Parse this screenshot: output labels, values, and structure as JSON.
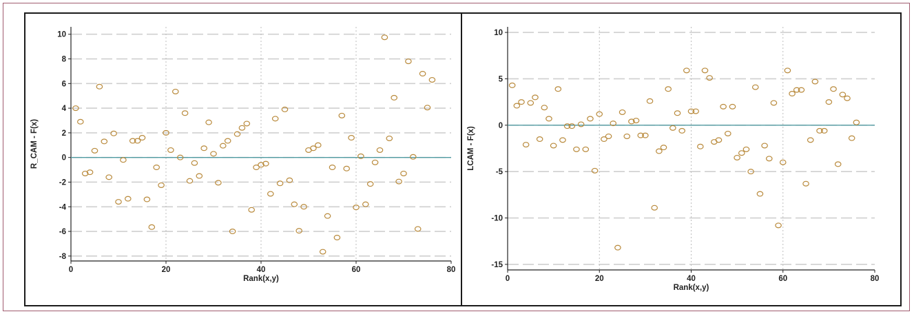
{
  "chart_data": [
    {
      "type": "scatter",
      "title": "",
      "xlabel": "Rank(x,y)",
      "ylabel": "R_CAM - F(x)",
      "xlim": [
        0,
        80
      ],
      "ylim": [
        -8.4,
        10.6
      ],
      "xticks": [
        0,
        20,
        40,
        60,
        80
      ],
      "yticks": [
        10,
        8,
        6,
        4,
        2,
        0,
        -2,
        -4,
        -6,
        -8
      ],
      "xtick_labels": [
        "0",
        "20",
        "40",
        "60",
        "80"
      ],
      "ytick_labels": [
        "10",
        "8",
        "6",
        "4",
        "2",
        "0",
        "-2",
        "-4",
        "-6",
        "-8"
      ],
      "grid": true,
      "reference_line": 0,
      "marker": "open-circle",
      "marker_color": "#b98a3c",
      "line_color": "#4f9aa0",
      "points": [
        [
          1,
          4.0
        ],
        [
          2,
          2.9
        ],
        [
          3,
          -1.3
        ],
        [
          4,
          -1.2
        ],
        [
          5,
          0.55
        ],
        [
          6,
          5.75
        ],
        [
          7,
          1.3
        ],
        [
          8,
          -1.6
        ],
        [
          9,
          1.95
        ],
        [
          10,
          -3.6
        ],
        [
          11,
          -0.2
        ],
        [
          12,
          -3.35
        ],
        [
          13,
          1.35
        ],
        [
          14,
          1.35
        ],
        [
          15,
          1.6
        ],
        [
          16,
          -3.4
        ],
        [
          17,
          -5.65
        ],
        [
          18,
          -0.8
        ],
        [
          19,
          -2.25
        ],
        [
          20,
          2.0
        ],
        [
          21,
          0.6
        ],
        [
          22,
          5.35
        ],
        [
          23,
          0.0
        ],
        [
          24,
          3.6
        ],
        [
          25,
          -1.9
        ],
        [
          26,
          -0.45
        ],
        [
          27,
          -1.5
        ],
        [
          28,
          0.75
        ],
        [
          29,
          2.85
        ],
        [
          30,
          0.3
        ],
        [
          31,
          -2.05
        ],
        [
          32,
          0.95
        ],
        [
          33,
          1.35
        ],
        [
          34,
          -6.0
        ],
        [
          35,
          1.9
        ],
        [
          36,
          2.4
        ],
        [
          37,
          2.75
        ],
        [
          38,
          -4.25
        ],
        [
          39,
          -0.8
        ],
        [
          40,
          -0.6
        ],
        [
          41,
          -0.5
        ],
        [
          42,
          -2.95
        ],
        [
          43,
          3.15
        ],
        [
          44,
          -2.1
        ],
        [
          45,
          3.9
        ],
        [
          46,
          -1.85
        ],
        [
          47,
          -3.8
        ],
        [
          48,
          -5.95
        ],
        [
          49,
          -4.0
        ],
        [
          50,
          0.6
        ],
        [
          51,
          0.75
        ],
        [
          52,
          1.0
        ],
        [
          53,
          -7.65
        ],
        [
          54,
          -4.75
        ],
        [
          55,
          -0.8
        ],
        [
          56,
          -6.5
        ],
        [
          57,
          3.4
        ],
        [
          58,
          -0.9
        ],
        [
          59,
          1.6
        ],
        [
          60,
          -4.05
        ],
        [
          61,
          0.1
        ],
        [
          62,
          -3.8
        ],
        [
          63,
          -2.15
        ],
        [
          64,
          -0.4
        ],
        [
          65,
          0.6
        ],
        [
          66,
          9.75
        ],
        [
          67,
          1.55
        ],
        [
          68,
          4.85
        ],
        [
          69,
          -1.95
        ],
        [
          70,
          -1.3
        ],
        [
          71,
          7.8
        ],
        [
          72,
          0.05
        ],
        [
          73,
          -5.8
        ],
        [
          74,
          6.8
        ],
        [
          75,
          4.05
        ],
        [
          76,
          6.3
        ]
      ]
    },
    {
      "type": "scatter",
      "title": "",
      "xlabel": "Rank(x,y)",
      "ylabel": "LCAM - F(x)",
      "xlim": [
        0,
        80
      ],
      "ylim": [
        -15.6,
        10.6
      ],
      "xticks": [
        0,
        20,
        40,
        60,
        80
      ],
      "yticks": [
        10,
        5,
        0,
        -5,
        -10,
        -15
      ],
      "xtick_labels": [
        "0",
        "20",
        "40",
        "60",
        "80"
      ],
      "ytick_labels": [
        "10",
        "5",
        "0",
        "-5",
        "-10",
        "-15"
      ],
      "grid": true,
      "reference_line": 0,
      "marker": "open-circle",
      "marker_color": "#b98a3c",
      "line_color": "#4f9aa0",
      "points": [
        [
          1,
          4.3
        ],
        [
          2,
          2.1
        ],
        [
          3,
          2.5
        ],
        [
          4,
          -2.1
        ],
        [
          5,
          2.4
        ],
        [
          6,
          3.0
        ],
        [
          7,
          -1.5
        ],
        [
          8,
          1.9
        ],
        [
          9,
          0.7
        ],
        [
          10,
          -2.2
        ],
        [
          11,
          3.9
        ],
        [
          12,
          -1.6
        ],
        [
          13,
          -0.1
        ],
        [
          14,
          -0.1
        ],
        [
          15,
          -2.6
        ],
        [
          16,
          0.1
        ],
        [
          17,
          -2.6
        ],
        [
          18,
          0.7
        ],
        [
          19,
          -4.9
        ],
        [
          20,
          1.2
        ],
        [
          21,
          -1.5
        ],
        [
          22,
          -1.2
        ],
        [
          23,
          0.2
        ],
        [
          24,
          -13.2
        ],
        [
          25,
          1.4
        ],
        [
          26,
          -1.2
        ],
        [
          27,
          0.4
        ],
        [
          28,
          0.5
        ],
        [
          29,
          -1.1
        ],
        [
          30,
          -1.1
        ],
        [
          31,
          2.6
        ],
        [
          32,
          -8.9
        ],
        [
          33,
          -2.8
        ],
        [
          34,
          -2.4
        ],
        [
          35,
          3.9
        ],
        [
          36,
          -0.3
        ],
        [
          37,
          1.3
        ],
        [
          38,
          -0.6
        ],
        [
          39,
          5.9
        ],
        [
          40,
          1.5
        ],
        [
          41,
          1.5
        ],
        [
          42,
          -2.3
        ],
        [
          43,
          5.9
        ],
        [
          44,
          5.1
        ],
        [
          45,
          -1.8
        ],
        [
          46,
          -1.6
        ],
        [
          47,
          2.0
        ],
        [
          48,
          -0.9
        ],
        [
          49,
          2.0
        ],
        [
          50,
          -3.5
        ],
        [
          51,
          -3.0
        ],
        [
          52,
          -2.6
        ],
        [
          53,
          -5.0
        ],
        [
          54,
          4.1
        ],
        [
          55,
          -7.4
        ],
        [
          56,
          -2.2
        ],
        [
          57,
          -3.6
        ],
        [
          58,
          2.4
        ],
        [
          59,
          -10.8
        ],
        [
          60,
          -4.0
        ],
        [
          61,
          5.9
        ],
        [
          62,
          3.4
        ],
        [
          63,
          3.8
        ],
        [
          64,
          3.8
        ],
        [
          65,
          -6.3
        ],
        [
          66,
          -1.6
        ],
        [
          67,
          4.7
        ],
        [
          68,
          -0.6
        ],
        [
          69,
          -0.6
        ],
        [
          70,
          2.5
        ],
        [
          71,
          3.9
        ],
        [
          72,
          -4.2
        ],
        [
          73,
          3.3
        ],
        [
          74,
          2.9
        ],
        [
          75,
          -1.4
        ],
        [
          76,
          0.3
        ]
      ]
    }
  ]
}
